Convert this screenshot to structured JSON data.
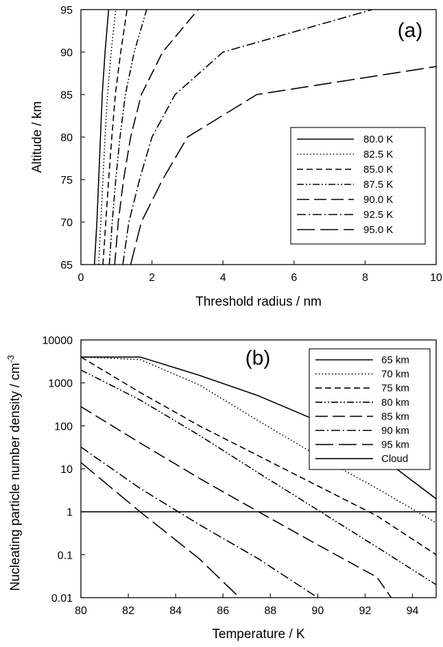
{
  "chart_data": [
    {
      "panel": "(a)",
      "type": "line",
      "xlabel": "Threshold radius / nm",
      "ylabel": "Altitude / km",
      "xlim": [
        0,
        10
      ],
      "ylim": [
        65,
        95
      ],
      "xticks": [
        "0",
        "2",
        "4",
        "6",
        "8",
        "10"
      ],
      "yticks": [
        "65",
        "70",
        "75",
        "80",
        "85",
        "90",
        "95"
      ],
      "legend_position": "right",
      "series": [
        {
          "name": "80.0 K",
          "style": "solid",
          "points": [
            [
              0.38,
              65
            ],
            [
              0.45,
              70
            ],
            [
              0.5,
              75
            ],
            [
              0.55,
              80
            ],
            [
              0.6,
              85
            ],
            [
              0.68,
              90
            ],
            [
              0.78,
              95
            ]
          ]
        },
        {
          "name": "82.5 K",
          "style": "dotted",
          "points": [
            [
              0.5,
              65
            ],
            [
              0.56,
              70
            ],
            [
              0.62,
              75
            ],
            [
              0.68,
              80
            ],
            [
              0.75,
              85
            ],
            [
              0.85,
              90
            ],
            [
              0.98,
              95
            ]
          ]
        },
        {
          "name": "85.0 K",
          "style": "dash",
          "points": [
            [
              0.62,
              65
            ],
            [
              0.7,
              70
            ],
            [
              0.78,
              75
            ],
            [
              0.87,
              80
            ],
            [
              0.97,
              85
            ],
            [
              1.12,
              90
            ],
            [
              1.3,
              95
            ]
          ]
        },
        {
          "name": "87.5 K",
          "style": "dashdotdot",
          "points": [
            [
              0.8,
              65
            ],
            [
              0.88,
              70
            ],
            [
              0.98,
              75
            ],
            [
              1.1,
              80
            ],
            [
              1.25,
              85
            ],
            [
              1.5,
              90
            ],
            [
              1.85,
              95
            ]
          ]
        },
        {
          "name": "90.0 K",
          "style": "longdash",
          "points": [
            [
              0.95,
              65
            ],
            [
              1.05,
              70
            ],
            [
              1.2,
              75
            ],
            [
              1.4,
              80
            ],
            [
              1.7,
              85
            ],
            [
              2.3,
              90
            ],
            [
              3.3,
              95
            ]
          ]
        },
        {
          "name": "92.5 K",
          "style": "dashdot",
          "points": [
            [
              1.18,
              65
            ],
            [
              1.35,
              70
            ],
            [
              1.65,
              75
            ],
            [
              2.0,
              80
            ],
            [
              2.65,
              85
            ],
            [
              4.0,
              90
            ],
            [
              8.2,
              95
            ]
          ]
        },
        {
          "name": "95.0 K",
          "style": "longdash2",
          "points": [
            [
              1.4,
              65
            ],
            [
              1.7,
              70
            ],
            [
              2.3,
              75
            ],
            [
              3.0,
              80
            ],
            [
              4.95,
              85
            ],
            [
              10.0,
              88.3
            ]
          ]
        }
      ]
    },
    {
      "panel": "(b)",
      "type": "line",
      "xlabel": "Temperature / K",
      "ylabel": "Nucleating particle number density / cm",
      "ylabel_superscript": "-3",
      "xlim": [
        80,
        95
      ],
      "ylim": [
        0.01,
        10000
      ],
      "yscale": "log",
      "xticks": [
        "80",
        "82",
        "84",
        "86",
        "88",
        "90",
        "92",
        "94"
      ],
      "yticks": [
        "0.01",
        "0.1",
        "1",
        "10",
        "100",
        "1000",
        "10000"
      ],
      "legend_position": "top-right",
      "series": [
        {
          "name": "65 km",
          "style": "solid",
          "points": [
            [
              80,
              4000
            ],
            [
              82.5,
              4000
            ],
            [
              85,
              1500
            ],
            [
              87.5,
              500
            ],
            [
              90,
              130
            ],
            [
              92.5,
              22
            ],
            [
              95,
              2
            ]
          ]
        },
        {
          "name": "70 km",
          "style": "dotted",
          "points": [
            [
              80,
              4000
            ],
            [
              82.5,
              3500
            ],
            [
              85,
              900
            ],
            [
              87.5,
              130
            ],
            [
              90,
              20
            ],
            [
              92.5,
              3.5
            ],
            [
              95,
              0.55
            ]
          ]
        },
        {
          "name": "75 km",
          "style": "dash",
          "points": [
            [
              80,
              4000
            ],
            [
              82.5,
              600
            ],
            [
              85,
              100
            ],
            [
              87.5,
              20
            ],
            [
              90,
              4
            ],
            [
              92.5,
              0.8
            ],
            [
              95,
              0.1
            ]
          ]
        },
        {
          "name": "80 km",
          "style": "dashdotdot",
          "points": [
            [
              80,
              2000
            ],
            [
              82.5,
              400
            ],
            [
              85,
              60
            ],
            [
              87.5,
              8
            ],
            [
              90,
              1.1
            ],
            [
              92.5,
              0.15
            ],
            [
              95,
              0.02
            ]
          ]
        },
        {
          "name": "85 km",
          "style": "longdash",
          "points": [
            [
              80,
              280
            ],
            [
              82.5,
              40
            ],
            [
              85,
              6
            ],
            [
              87.5,
              1
            ],
            [
              90,
              0.17
            ],
            [
              92.5,
              0.03
            ],
            [
              93.1,
              0.01
            ]
          ]
        },
        {
          "name": "90 km",
          "style": "dashdot",
          "points": [
            [
              80,
              32
            ],
            [
              82.5,
              3.5
            ],
            [
              85,
              0.5
            ],
            [
              87.5,
              0.08
            ],
            [
              90,
              0.01
            ]
          ]
        },
        {
          "name": "95 km",
          "style": "longdash2",
          "points": [
            [
              80,
              14
            ],
            [
              82.5,
              1
            ],
            [
              85,
              0.08
            ],
            [
              86.7,
              0.01
            ]
          ]
        },
        {
          "name": "Cloud",
          "style": "cloud",
          "points": [
            [
              80,
              1
            ],
            [
              95,
              1
            ]
          ]
        }
      ]
    }
  ]
}
